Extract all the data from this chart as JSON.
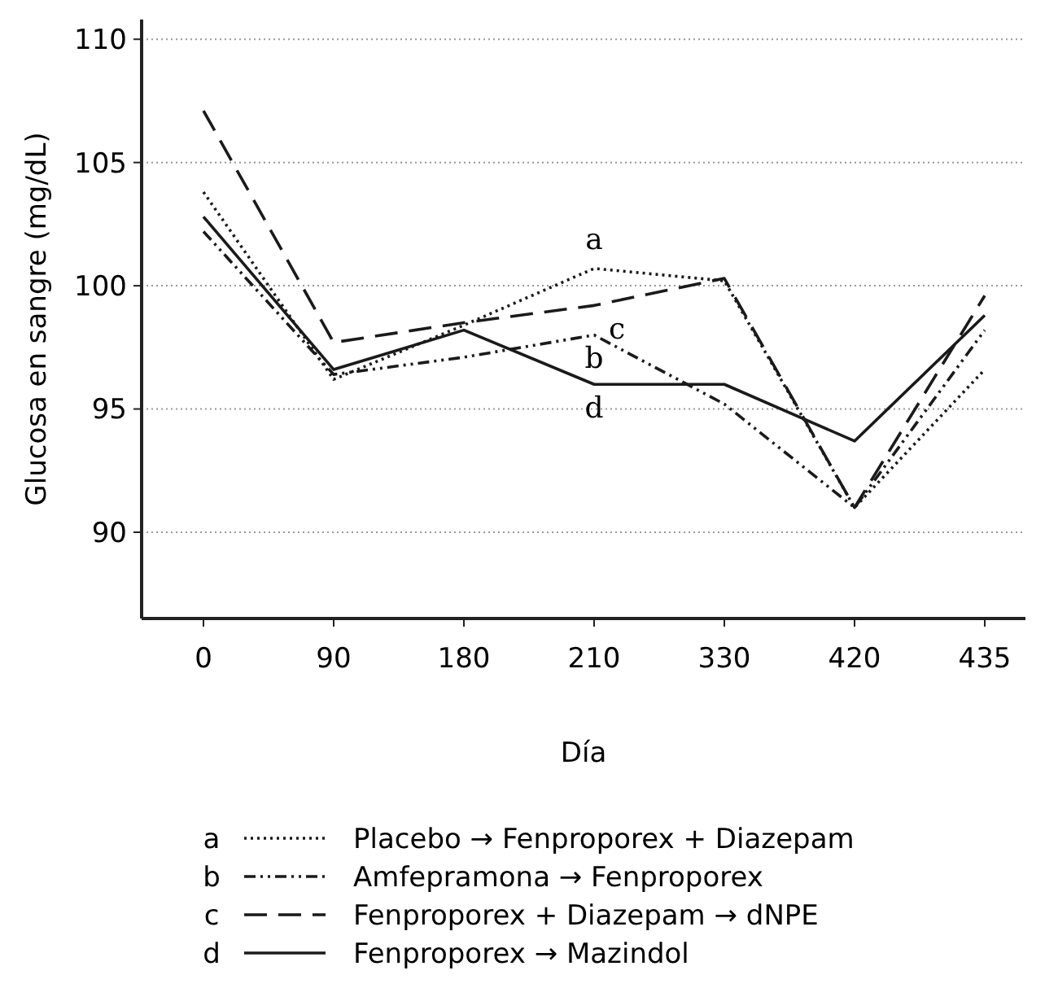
{
  "chart_data": {
    "type": "line",
    "xlabel": "Día",
    "ylabel": "Glucosa en sangre (mg/dL)",
    "categories": [
      "0",
      "90",
      "180",
      "210",
      "330",
      "420",
      "435"
    ],
    "series": [
      {
        "name": "Placebo → Fenproporex + Diazepam",
        "color": "#1a1a1a",
        "line_style": "dotted",
        "values": [
          103.8,
          96.2,
          98.4,
          100.7,
          100.2,
          91.0,
          96.6
        ]
      },
      {
        "name": "Amfepramona → Fenproporex",
        "color": "#1a1a1a",
        "line_style": "dashdot",
        "values": [
          102.2,
          96.4,
          97.1,
          98.0,
          95.2,
          91.0,
          98.2
        ]
      },
      {
        "name": "Fenproporex + Diazepam → dNPE",
        "color": "#1a1a1a",
        "line_style": "dashed",
        "values": [
          107.1,
          97.7,
          98.5,
          99.2,
          100.3,
          91.0,
          99.6
        ]
      },
      {
        "name": "Fenproporex → Mazindol",
        "color": "#1a1a1a",
        "line_style": "solid",
        "values": [
          102.8,
          96.6,
          98.2,
          96.0,
          96.0,
          93.7,
          98.8
        ]
      }
    ],
    "annotations": [
      {
        "text": "a",
        "x": "210",
        "y": 100.7
      },
      {
        "text": "b",
        "x": "210",
        "y": 98.0
      },
      {
        "text": "c",
        "x": "210",
        "y": 99.2
      },
      {
        "text": "d",
        "x": "210",
        "y": 96.0
      }
    ],
    "ylim": [
      86.5,
      110.8
    ],
    "yticks": [
      90,
      95,
      100,
      105,
      110
    ],
    "grid": "y",
    "legend": "bottom"
  }
}
